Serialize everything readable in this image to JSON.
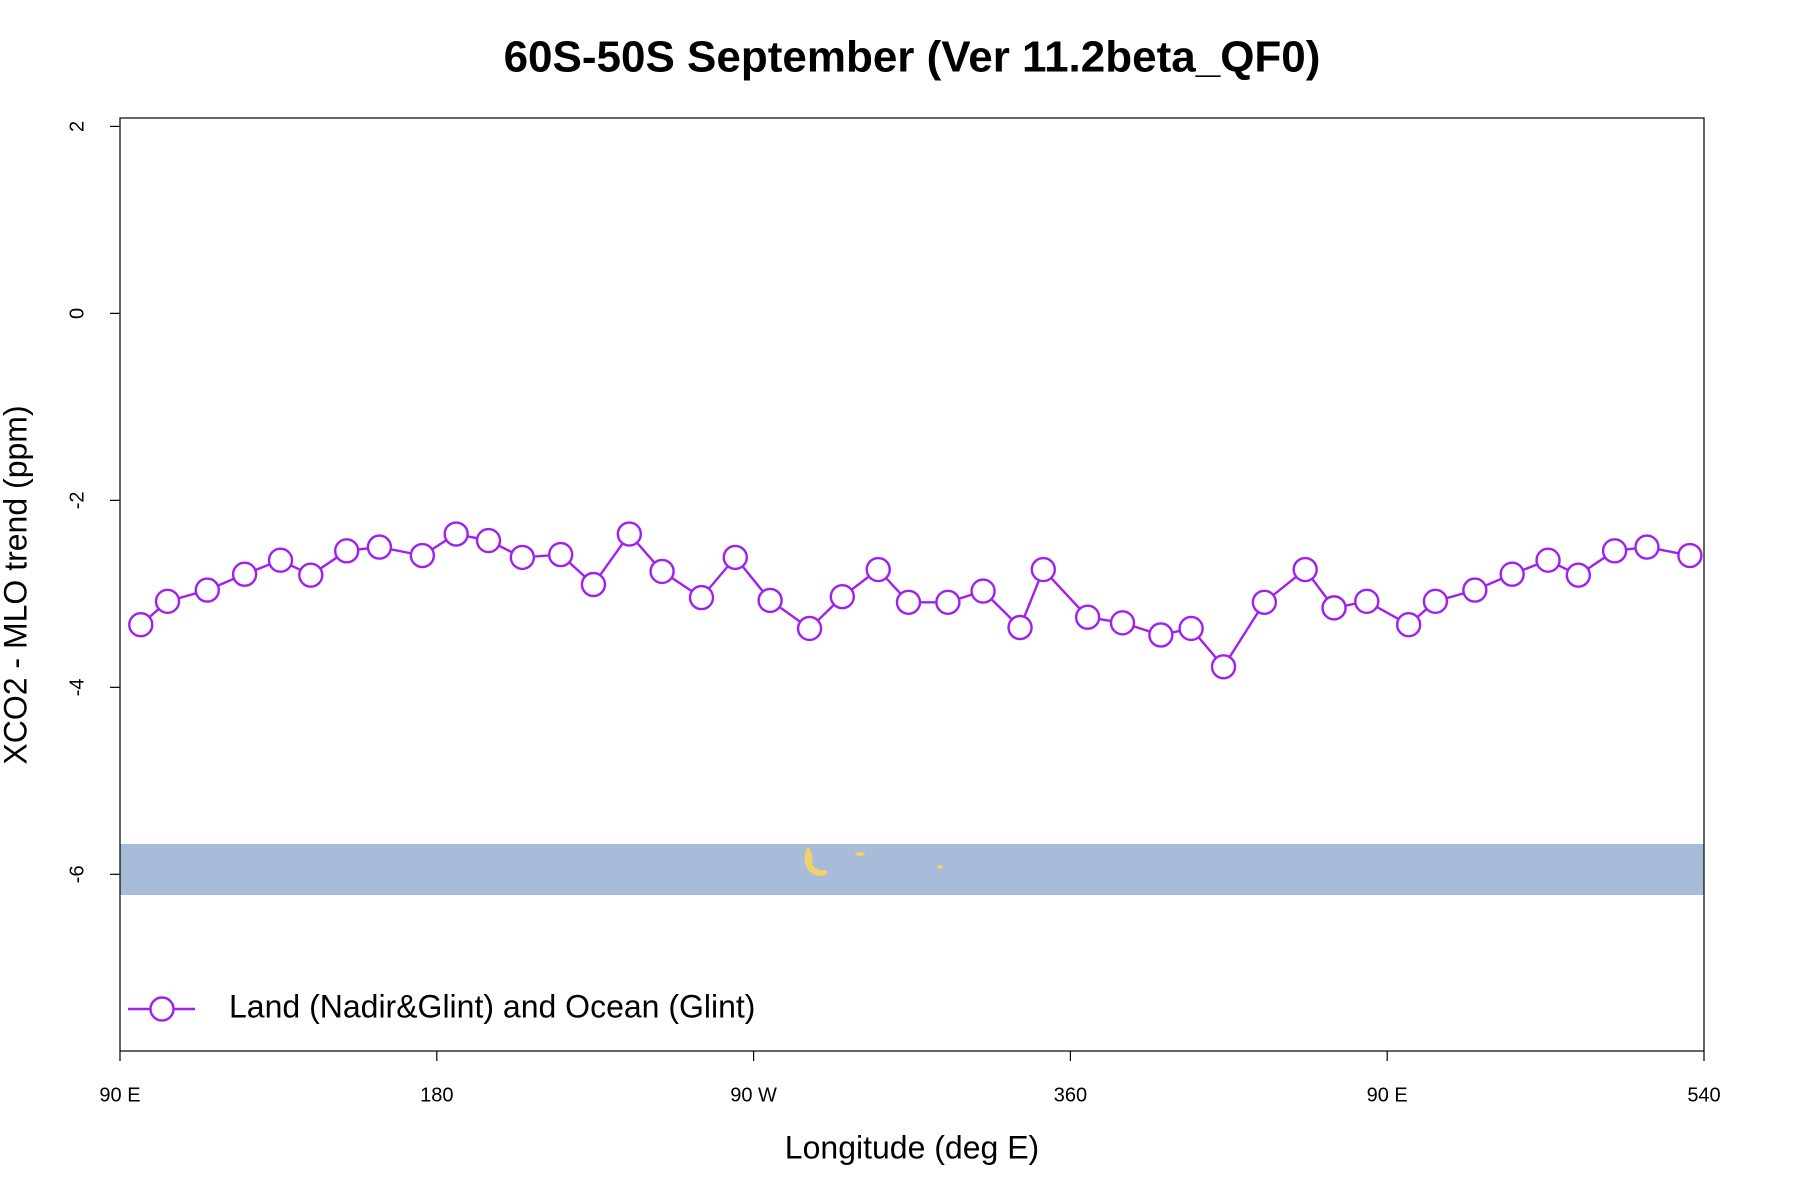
{
  "chart_data": {
    "type": "line",
    "title": "60S-50S September (Ver 11.2beta_QF0)",
    "x_label": "Longitude (deg E)",
    "y_label": "XCO2 - MLO trend (ppm)",
    "x": [
      95.9,
      103.5,
      114.8,
      125.4,
      135.6,
      144.2,
      154.4,
      163.7,
      175.9,
      185.5,
      194.7,
      204.3,
      215.2,
      224.5,
      234.7,
      244,
      255.2,
      264.8,
      274.7,
      285.9,
      295.2,
      305.4,
      314,
      325.2,
      335.2,
      345.7,
      352.3,
      364.9,
      374.8,
      385.7,
      394.3,
      403.5,
      415.1,
      426.7,
      434.9,
      444.2,
      456.1,
      463.7,
      474.9,
      485.5,
      495.7,
      504.3,
      514.6,
      523.8,
      536
    ],
    "series": [
      {
        "name": "Land (Nadir&Glint) and Ocean (Glint)",
        "color": "#a020f0",
        "values": [
          -3.33,
          -3.08,
          -2.96,
          -2.79,
          -2.64,
          -2.8,
          -2.54,
          -2.5,
          -2.59,
          -2.36,
          -2.43,
          -2.61,
          -2.58,
          -2.9,
          -2.36,
          -2.76,
          -3.04,
          -2.61,
          -3.07,
          -3.37,
          -3.03,
          -2.74,
          -3.09,
          -3.09,
          -2.97,
          -3.36,
          -2.74,
          -3.25,
          -3.31,
          -3.44,
          -3.37,
          -3.78,
          -3.09,
          -2.74,
          -3.15,
          -3.08,
          -3.33,
          -3.08,
          -2.96,
          -2.79,
          -2.64,
          -2.8,
          -2.54,
          -2.5,
          -2.59
        ]
      }
    ],
    "xlim": [
      90,
      540
    ],
    "xticks": [
      {
        "value": 90,
        "label": "90 E"
      },
      180,
      {
        "value": 270,
        "label": "90 W"
      },
      360,
      {
        "value": 450,
        "label": "90 E"
      },
      540
    ],
    "ylim": [
      -7.89,
      2.09
    ],
    "yticks": [
      -6,
      -4,
      -2,
      0,
      2
    ],
    "legend": "bottomleft"
  }
}
